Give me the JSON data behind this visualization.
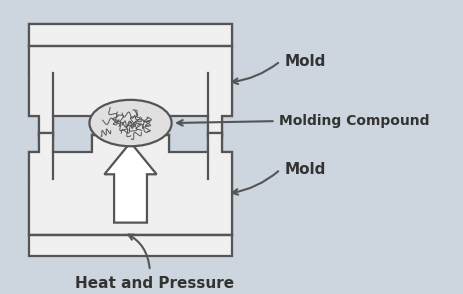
{
  "bg_color": "#cdd5de",
  "line_color": "#555555",
  "fill_color": "#f0f0f0",
  "white_fill": "#ffffff",
  "lw": 1.6,
  "label_mold_top": "Mold",
  "label_mold_bottom": "Mold",
  "label_compound": "Molding Compound",
  "label_pressure": "Heat and Pressure",
  "font_size_mold": 11,
  "font_size_compound": 10,
  "font_size_pressure": 11,
  "font_color": "#333333"
}
